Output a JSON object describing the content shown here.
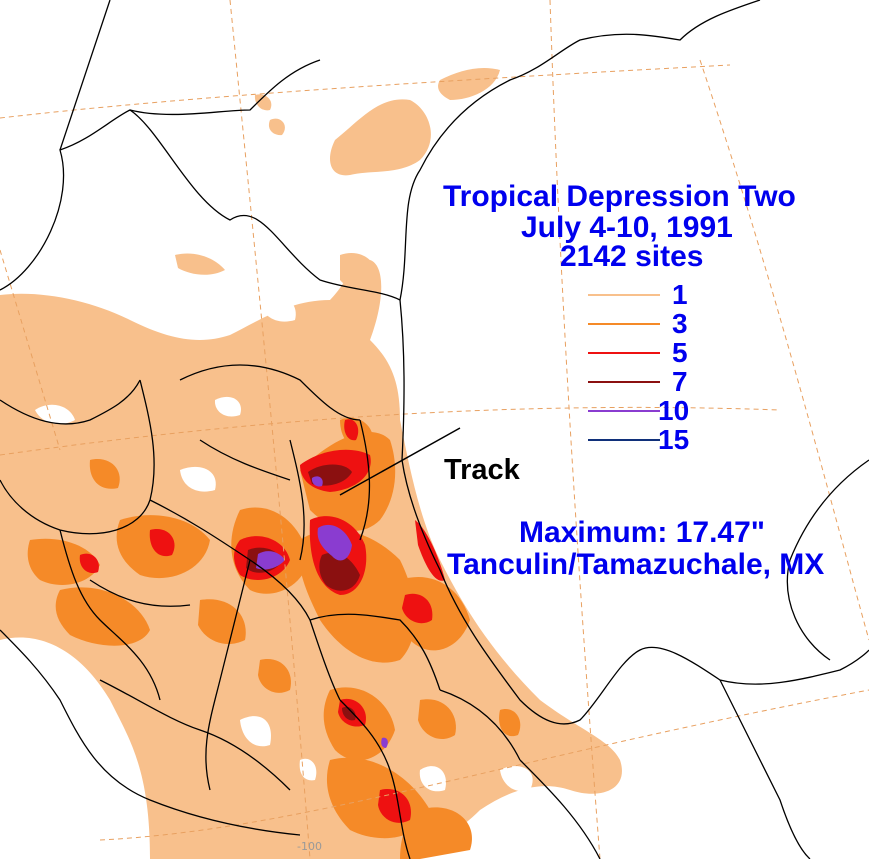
{
  "title": {
    "line1": "Tropical Depression Two",
    "line2": "July 4-10, 1991",
    "line3": "2142 sites"
  },
  "legend": [
    {
      "label": "1",
      "color": "#f8c08c"
    },
    {
      "label": "3",
      "color": "#f58a28"
    },
    {
      "label": "5",
      "color": "#ee1111"
    },
    {
      "label": "7",
      "color": "#8b1010"
    },
    {
      "label": "10",
      "color": "#8a3cd0"
    },
    {
      "label": "15",
      "color": "#10307a"
    }
  ],
  "track_label": "Track",
  "maximum": {
    "line1": "Maximum:  17.47\"",
    "line2": "Tanculin/Tamazuchale, MX"
  },
  "axis_tick": "-100",
  "colors": {
    "text": "#0000ee",
    "land_fill": "#ffffff",
    "border": "#000000",
    "graticule": "#e8a060"
  }
}
